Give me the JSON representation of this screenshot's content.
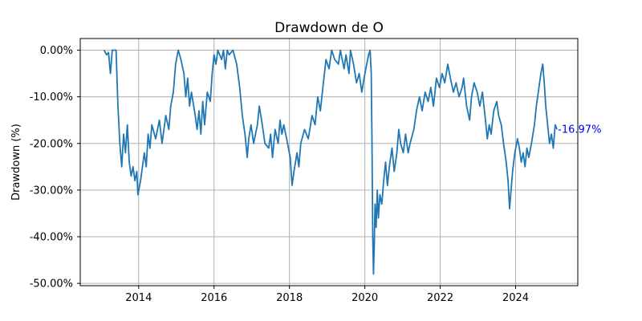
{
  "chart_data": {
    "type": "line",
    "title": "Drawdown de O",
    "xlabel": "",
    "ylabel": "Drawdown (%)",
    "xlim": [
      2012.45,
      2025.65
    ],
    "ylim": [
      -50.5,
      2.5
    ],
    "grid": true,
    "x_ticks": [
      {
        "value": 2014,
        "label": "2014"
      },
      {
        "value": 2016,
        "label": "2016"
      },
      {
        "value": 2018,
        "label": "2018"
      },
      {
        "value": 2020,
        "label": "2020"
      },
      {
        "value": 2022,
        "label": "2022"
      },
      {
        "value": 2024,
        "label": "2024"
      }
    ],
    "y_ticks": [
      {
        "value": 0,
        "label": "0.00%"
      },
      {
        "value": -10,
        "label": "-10.00%"
      },
      {
        "value": -20,
        "label": "-20.00%"
      },
      {
        "value": -30,
        "label": "-30.00%"
      },
      {
        "value": -40,
        "label": "-40.00%"
      },
      {
        "value": -50,
        "label": "-50.00%"
      }
    ],
    "series": [
      {
        "color": "#1f77b4",
        "points": [
          [
            2013.08,
            0.0
          ],
          [
            2013.15,
            -1.0
          ],
          [
            2013.2,
            -0.5
          ],
          [
            2013.25,
            -5.0
          ],
          [
            2013.3,
            0.0
          ],
          [
            2013.4,
            0.0
          ],
          [
            2013.45,
            -12.0
          ],
          [
            2013.5,
            -20.0
          ],
          [
            2013.55,
            -25.0
          ],
          [
            2013.6,
            -18.0
          ],
          [
            2013.65,
            -22.0
          ],
          [
            2013.7,
            -16.0
          ],
          [
            2013.75,
            -24.0
          ],
          [
            2013.8,
            -27.0
          ],
          [
            2013.85,
            -25.0
          ],
          [
            2013.9,
            -28.0
          ],
          [
            2013.95,
            -26.0
          ],
          [
            2013.98,
            -31.0
          ],
          [
            2014.05,
            -28.0
          ],
          [
            2014.15,
            -22.0
          ],
          [
            2014.2,
            -25.0
          ],
          [
            2014.25,
            -18.0
          ],
          [
            2014.3,
            -21.0
          ],
          [
            2014.35,
            -16.0
          ],
          [
            2014.45,
            -19.0
          ],
          [
            2014.55,
            -15.0
          ],
          [
            2014.62,
            -20.0
          ],
          [
            2014.72,
            -14.0
          ],
          [
            2014.8,
            -17.0
          ],
          [
            2014.85,
            -12.0
          ],
          [
            2014.92,
            -9.0
          ],
          [
            2014.98,
            -3.0
          ],
          [
            2015.05,
            0.0
          ],
          [
            2015.12,
            -2.0
          ],
          [
            2015.2,
            -5.0
          ],
          [
            2015.25,
            -10.0
          ],
          [
            2015.3,
            -6.0
          ],
          [
            2015.35,
            -12.0
          ],
          [
            2015.4,
            -9.0
          ],
          [
            2015.5,
            -14.0
          ],
          [
            2015.55,
            -17.0
          ],
          [
            2015.6,
            -13.0
          ],
          [
            2015.65,
            -18.0
          ],
          [
            2015.7,
            -11.0
          ],
          [
            2015.75,
            -16.0
          ],
          [
            2015.82,
            -9.0
          ],
          [
            2015.9,
            -11.0
          ],
          [
            2015.95,
            -5.0
          ],
          [
            2016.0,
            -1.0
          ],
          [
            2016.05,
            -3.0
          ],
          [
            2016.1,
            0.0
          ],
          [
            2016.2,
            -2.0
          ],
          [
            2016.25,
            0.0
          ],
          [
            2016.3,
            -4.0
          ],
          [
            2016.35,
            0.0
          ],
          [
            2016.4,
            -1.0
          ],
          [
            2016.5,
            0.0
          ],
          [
            2016.6,
            -3.0
          ],
          [
            2016.68,
            -8.0
          ],
          [
            2016.75,
            -14.0
          ],
          [
            2016.82,
            -18.0
          ],
          [
            2016.88,
            -23.0
          ],
          [
            2016.92,
            -19.0
          ],
          [
            2016.98,
            -16.0
          ],
          [
            2017.05,
            -20.0
          ],
          [
            2017.15,
            -16.0
          ],
          [
            2017.2,
            -12.0
          ],
          [
            2017.28,
            -16.0
          ],
          [
            2017.35,
            -20.0
          ],
          [
            2017.45,
            -21.0
          ],
          [
            2017.5,
            -18.0
          ],
          [
            2017.55,
            -23.0
          ],
          [
            2017.62,
            -17.0
          ],
          [
            2017.7,
            -20.0
          ],
          [
            2017.75,
            -15.0
          ],
          [
            2017.8,
            -18.0
          ],
          [
            2017.85,
            -16.0
          ],
          [
            2017.95,
            -20.0
          ],
          [
            2018.02,
            -23.0
          ],
          [
            2018.07,
            -29.0
          ],
          [
            2018.12,
            -26.0
          ],
          [
            2018.2,
            -22.0
          ],
          [
            2018.25,
            -25.0
          ],
          [
            2018.3,
            -20.0
          ],
          [
            2018.4,
            -17.0
          ],
          [
            2018.5,
            -19.0
          ],
          [
            2018.6,
            -14.0
          ],
          [
            2018.68,
            -16.0
          ],
          [
            2018.75,
            -10.0
          ],
          [
            2018.82,
            -13.0
          ],
          [
            2018.9,
            -7.0
          ],
          [
            2018.97,
            -2.0
          ],
          [
            2019.05,
            -4.0
          ],
          [
            2019.12,
            0.0
          ],
          [
            2019.2,
            -2.0
          ],
          [
            2019.3,
            -3.0
          ],
          [
            2019.35,
            0.0
          ],
          [
            2019.45,
            -4.0
          ],
          [
            2019.5,
            -1.0
          ],
          [
            2019.58,
            -5.0
          ],
          [
            2019.62,
            0.0
          ],
          [
            2019.7,
            -3.0
          ],
          [
            2019.78,
            -7.0
          ],
          [
            2019.85,
            -5.0
          ],
          [
            2019.92,
            -9.0
          ],
          [
            2019.98,
            -6.0
          ],
          [
            2020.05,
            -3.0
          ],
          [
            2020.1,
            -1.0
          ],
          [
            2020.14,
            0.0
          ],
          [
            2020.17,
            -5.0
          ],
          [
            2020.19,
            -20.0
          ],
          [
            2020.21,
            -40.0
          ],
          [
            2020.23,
            -48.0
          ],
          [
            2020.25,
            -42.0
          ],
          [
            2020.27,
            -33.0
          ],
          [
            2020.3,
            -38.0
          ],
          [
            2020.33,
            -30.0
          ],
          [
            2020.36,
            -36.0
          ],
          [
            2020.4,
            -31.0
          ],
          [
            2020.45,
            -33.0
          ],
          [
            2020.5,
            -28.0
          ],
          [
            2020.55,
            -24.0
          ],
          [
            2020.6,
            -29.0
          ],
          [
            2020.65,
            -25.0
          ],
          [
            2020.72,
            -21.0
          ],
          [
            2020.78,
            -26.0
          ],
          [
            2020.85,
            -22.0
          ],
          [
            2020.9,
            -17.0
          ],
          [
            2020.95,
            -20.0
          ],
          [
            2021.02,
            -22.0
          ],
          [
            2021.08,
            -18.0
          ],
          [
            2021.15,
            -22.0
          ],
          [
            2021.2,
            -20.0
          ],
          [
            2021.3,
            -17.0
          ],
          [
            2021.37,
            -13.0
          ],
          [
            2021.45,
            -10.0
          ],
          [
            2021.52,
            -13.0
          ],
          [
            2021.6,
            -9.0
          ],
          [
            2021.68,
            -11.0
          ],
          [
            2021.75,
            -8.0
          ],
          [
            2021.82,
            -12.0
          ],
          [
            2021.9,
            -6.0
          ],
          [
            2021.98,
            -8.0
          ],
          [
            2022.05,
            -5.0
          ],
          [
            2022.12,
            -7.0
          ],
          [
            2022.2,
            -3.0
          ],
          [
            2022.27,
            -6.0
          ],
          [
            2022.35,
            -9.0
          ],
          [
            2022.42,
            -7.0
          ],
          [
            2022.5,
            -10.0
          ],
          [
            2022.58,
            -8.0
          ],
          [
            2022.62,
            -6.0
          ],
          [
            2022.7,
            -12.0
          ],
          [
            2022.78,
            -15.0
          ],
          [
            2022.83,
            -10.0
          ],
          [
            2022.9,
            -7.0
          ],
          [
            2022.98,
            -9.0
          ],
          [
            2023.05,
            -12.0
          ],
          [
            2023.12,
            -9.0
          ],
          [
            2023.2,
            -15.0
          ],
          [
            2023.25,
            -19.0
          ],
          [
            2023.3,
            -16.0
          ],
          [
            2023.35,
            -18.0
          ],
          [
            2023.42,
            -13.0
          ],
          [
            2023.5,
            -11.0
          ],
          [
            2023.55,
            -14.0
          ],
          [
            2023.62,
            -16.0
          ],
          [
            2023.68,
            -20.0
          ],
          [
            2023.75,
            -24.0
          ],
          [
            2023.8,
            -28.0
          ],
          [
            2023.84,
            -34.0
          ],
          [
            2023.88,
            -30.0
          ],
          [
            2023.92,
            -26.0
          ],
          [
            2023.98,
            -22.0
          ],
          [
            2024.05,
            -19.0
          ],
          [
            2024.1,
            -21.0
          ],
          [
            2024.15,
            -24.0
          ],
          [
            2024.2,
            -22.0
          ],
          [
            2024.25,
            -25.0
          ],
          [
            2024.3,
            -21.0
          ],
          [
            2024.35,
            -23.0
          ],
          [
            2024.42,
            -20.0
          ],
          [
            2024.5,
            -16.0
          ],
          [
            2024.55,
            -12.0
          ],
          [
            2024.62,
            -8.0
          ],
          [
            2024.67,
            -5.0
          ],
          [
            2024.72,
            -3.0
          ],
          [
            2024.76,
            -7.0
          ],
          [
            2024.8,
            -12.0
          ],
          [
            2024.85,
            -16.0
          ],
          [
            2024.9,
            -20.0
          ],
          [
            2024.95,
            -18.0
          ],
          [
            2025.0,
            -21.0
          ],
          [
            2025.05,
            -16.0
          ],
          [
            2025.1,
            -16.97
          ]
        ]
      }
    ],
    "annotation": {
      "text": "-16.97%",
      "x": 2025.1,
      "y": -16.97,
      "color": "#0000ff"
    }
  }
}
